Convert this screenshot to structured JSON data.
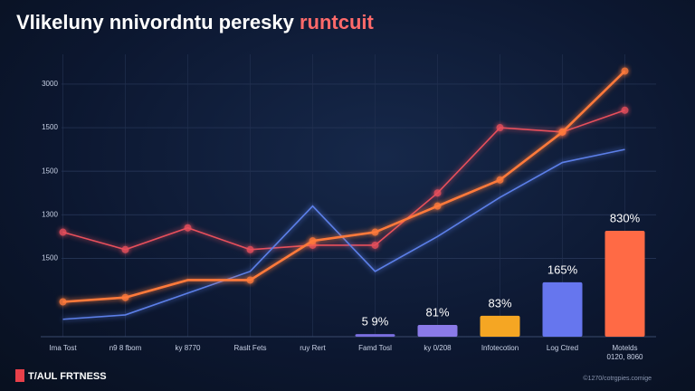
{
  "chart_data": {
    "type": "line",
    "title": "Vlikeluny nnivordntu peresky ",
    "title_highlight": "runtcuit",
    "categories": [
      "Ima Tost",
      "n9 8 fbom",
      "ky 8770",
      "Raslt Fets",
      "ruy Rert",
      "Famd Tosl",
      "ky 0/208",
      "Infotecotion",
      "Log Ctred",
      "Motelds\n0120, 8060"
    ],
    "ylim": [
      -0.8,
      6.1
    ],
    "yticks": [
      {
        "value": 5,
        "label": "3000"
      },
      {
        "value": 4,
        "label": "1500"
      },
      {
        "value": 3,
        "label": "1500"
      },
      {
        "value": 2,
        "label": "1300"
      },
      {
        "value": 1,
        "label": "1500"
      }
    ],
    "grid": true,
    "series": [
      {
        "name": "red",
        "color": "#e8505b",
        "values": [
          1.6,
          1.2,
          1.7,
          1.2,
          1.3,
          1.3,
          2.5,
          4.0,
          3.9,
          4.4
        ]
      },
      {
        "name": "blue",
        "color": "#5b7fe8",
        "values": [
          -0.4,
          -0.3,
          0.2,
          0.7,
          2.2,
          0.7,
          1.5,
          2.4,
          3.2,
          3.5
        ]
      },
      {
        "name": "orange",
        "color": "#ff7a3a",
        "values": [
          0.0,
          0.1,
          0.5,
          0.5,
          1.4,
          1.6,
          2.2,
          2.8,
          3.9,
          5.3
        ]
      }
    ],
    "bars": {
      "values": [
        null,
        null,
        null,
        null,
        null,
        -0.76,
        -0.55,
        -0.34,
        0.43,
        1.61
      ],
      "value_labels": [
        null,
        null,
        null,
        null,
        null,
        "5 9%",
        "81%",
        "83%",
        "165%",
        "830%"
      ],
      "colors": [
        null,
        null,
        null,
        null,
        null,
        "#7a6fe0",
        "#8a7ae8",
        "#f5a623",
        "#6676ee",
        "#ff6a45"
      ]
    },
    "brand": "T/AUL FRTNESS",
    "source": "©1270/cotrgpies.comige"
  }
}
